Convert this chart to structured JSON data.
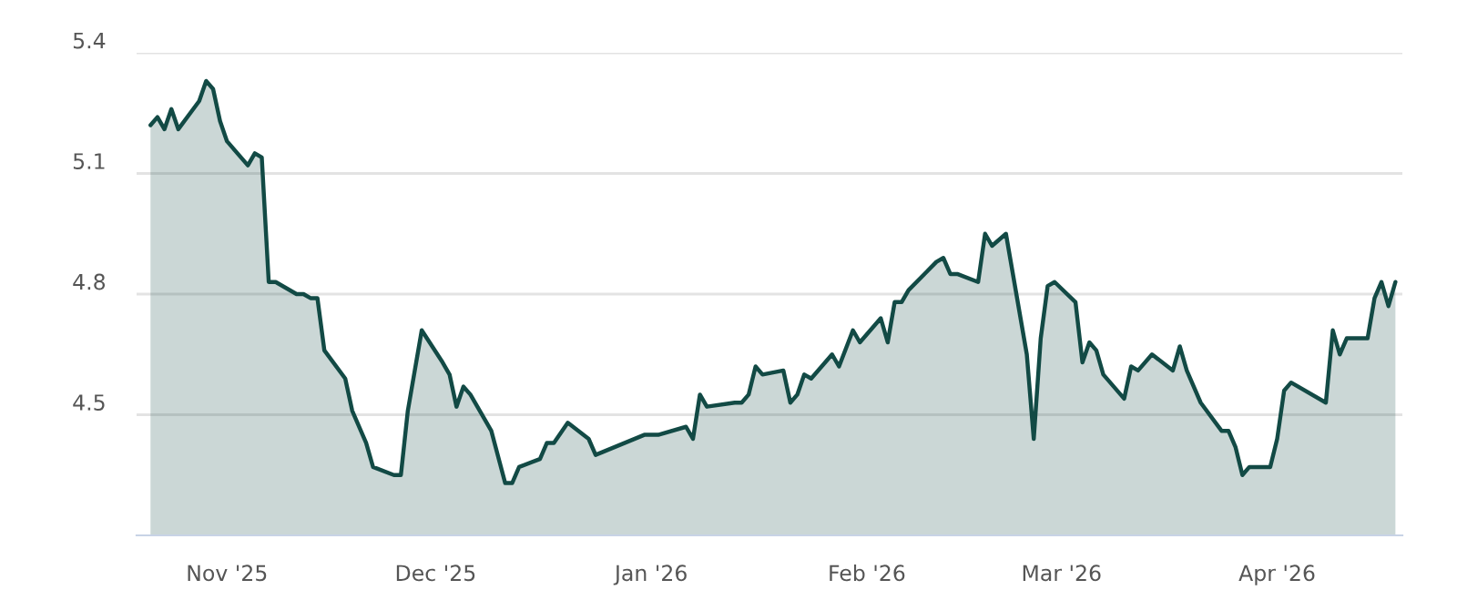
{
  "chart_data": {
    "type": "area",
    "x": [
      "2025-10-21",
      "2025-10-22",
      "2025-10-23",
      "2025-10-24",
      "2025-10-25",
      "2025-10-28",
      "2025-10-29",
      "2025-10-30",
      "2025-10-31",
      "2025-11-01",
      "2025-11-04",
      "2025-11-05",
      "2025-11-06",
      "2025-11-07",
      "2025-11-08",
      "2025-11-11",
      "2025-11-12",
      "2025-11-13",
      "2025-11-14",
      "2025-11-15",
      "2025-11-18",
      "2025-11-19",
      "2025-11-21",
      "2025-11-22",
      "2025-11-25",
      "2025-11-26",
      "2025-11-27",
      "2025-11-28",
      "2025-11-29",
      "2025-12-02",
      "2025-12-03",
      "2025-12-04",
      "2025-12-05",
      "2025-12-06",
      "2025-12-09",
      "2025-12-11",
      "2025-12-12",
      "2025-12-13",
      "2025-12-16",
      "2025-12-17",
      "2025-12-18",
      "2025-12-20",
      "2025-12-23",
      "2025-12-24",
      "2025-12-31",
      "2026-01-02",
      "2026-01-06",
      "2026-01-07",
      "2026-01-08",
      "2026-01-09",
      "2026-01-13",
      "2026-01-14",
      "2026-01-15",
      "2026-01-16",
      "2026-01-17",
      "2026-01-20",
      "2026-01-21",
      "2026-01-22",
      "2026-01-23",
      "2026-01-24",
      "2026-01-27",
      "2026-01-28",
      "2026-01-30",
      "2026-01-31",
      "2026-02-03",
      "2026-02-04",
      "2026-02-05",
      "2026-02-06",
      "2026-02-07",
      "2026-02-11",
      "2026-02-12",
      "2026-02-13",
      "2026-02-14",
      "2026-02-17",
      "2026-02-18",
      "2026-02-19",
      "2026-02-21",
      "2026-02-24",
      "2026-02-25",
      "2026-02-26",
      "2026-02-27",
      "2026-02-28",
      "2026-03-03",
      "2026-03-04",
      "2026-03-05",
      "2026-03-06",
      "2026-03-07",
      "2026-03-10",
      "2026-03-11",
      "2026-03-12",
      "2026-03-14",
      "2026-03-17",
      "2026-03-18",
      "2026-03-19",
      "2026-03-21",
      "2026-03-24",
      "2026-03-25",
      "2026-03-26",
      "2026-03-27",
      "2026-03-28",
      "2026-03-31",
      "2026-04-01",
      "2026-04-02",
      "2026-04-03",
      "2026-04-08",
      "2026-04-09",
      "2026-04-10",
      "2026-04-11",
      "2026-04-14",
      "2026-04-15",
      "2026-04-16",
      "2026-04-17",
      "2026-04-18"
    ],
    "series": [
      {
        "color": "#124a45",
        "values": [
          5.22,
          5.24,
          5.21,
          5.26,
          5.21,
          5.28,
          5.33,
          5.31,
          5.23,
          5.18,
          5.12,
          5.15,
          5.14,
          4.83,
          4.83,
          4.8,
          4.8,
          4.79,
          4.79,
          4.66,
          4.59,
          4.51,
          4.43,
          4.37,
          4.35,
          4.35,
          4.51,
          4.61,
          4.71,
          4.63,
          4.6,
          4.52,
          4.57,
          4.55,
          4.46,
          4.33,
          4.33,
          4.37,
          4.39,
          4.43,
          4.43,
          4.48,
          4.44,
          4.4,
          4.45,
          4.45,
          4.47,
          4.44,
          4.55,
          4.52,
          4.53,
          4.53,
          4.55,
          4.62,
          4.6,
          4.61,
          4.53,
          4.55,
          4.6,
          4.59,
          4.65,
          4.62,
          4.71,
          4.68,
          4.74,
          4.68,
          4.78,
          4.78,
          4.81,
          4.88,
          4.89,
          4.85,
          4.85,
          4.83,
          4.95,
          4.92,
          4.95,
          4.65,
          4.44,
          4.69,
          4.82,
          4.83,
          4.78,
          4.63,
          4.68,
          4.66,
          4.6,
          4.54,
          4.62,
          4.61,
          4.65,
          4.61,
          4.67,
          4.61,
          4.53,
          4.46,
          4.46,
          4.42,
          4.35,
          4.37,
          4.37,
          4.44,
          4.56,
          4.58,
          4.53,
          4.71,
          4.65,
          4.69,
          4.69,
          4.79,
          4.83,
          4.77,
          4.83
        ]
      }
    ],
    "xlim": [
      "2025-10-19",
      "2026-04-19"
    ],
    "xticks": [
      {
        "value": "2025-11-01",
        "label": "Nov '25"
      },
      {
        "value": "2025-12-01",
        "label": "Dec '25"
      },
      {
        "value": "2026-01-01",
        "label": "Jan '26"
      },
      {
        "value": "2026-02-01",
        "label": "Feb '26"
      },
      {
        "value": "2026-03-01",
        "label": "Mar '26"
      },
      {
        "value": "2026-04-01",
        "label": "Apr '26"
      }
    ],
    "ylim": [
      4.2,
      5.4
    ],
    "yticks": [
      4.5,
      4.8,
      5.1,
      5.4
    ],
    "grid": "y"
  }
}
